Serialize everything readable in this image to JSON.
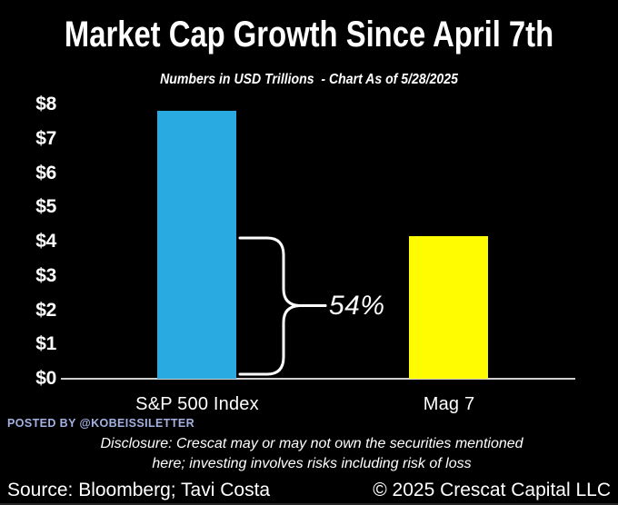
{
  "title": "Market Cap Growth Since April 7th",
  "subtitle": "Numbers in USD Trillions  - Chart As of 5/28/2025",
  "chart_data": {
    "type": "bar",
    "categories": [
      "S&P 500 Index",
      "Mag 7"
    ],
    "values": [
      7.9,
      4.2
    ],
    "bar_colors": [
      "#29abe2",
      "#fffb00"
    ],
    "title": "Market Cap Growth Since April 7th",
    "subtitle": "Numbers in USD Trillions  - Chart As of 5/28/2025",
    "unit": "USD Trillions",
    "y_ticks": [
      "$8",
      "$7",
      "$6",
      "$5",
      "$4",
      "$3",
      "$2",
      "$1",
      "$0"
    ],
    "ylim": [
      0,
      8
    ],
    "grid": false,
    "legend": "none",
    "background_color": "#000000",
    "axis_line_color": "#cfcfcf",
    "annotation": {
      "label": "54%",
      "meaning": "bracket spanning from $0 to Mag 7 level ($4.2T) on the S&P 500 bar",
      "from_value": 0,
      "to_value": 4.2
    }
  },
  "annotation": {
    "label": "54%"
  },
  "posted_by": "POSTED BY @KOBEISSILETTER",
  "disclosure": {
    "line1": "Disclosure: Crescat may or may not own the securities mentioned",
    "line2": "here; investing involves risks including risk of loss"
  },
  "footer": {
    "source": "Source: Bloomberg; Tavi Costa",
    "copyright": "© 2025 Crescat Capital LLC"
  }
}
